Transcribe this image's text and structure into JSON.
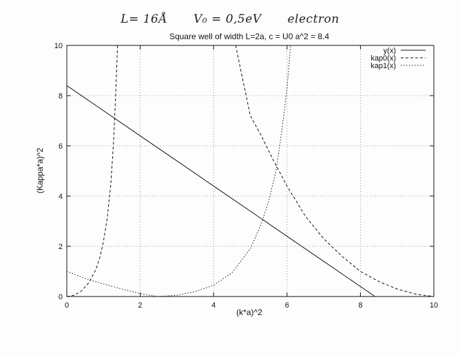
{
  "annotation": {
    "length": "L= 16Å",
    "potential": "V₀ = 0,5eV",
    "particle": "electron"
  },
  "chart_data": {
    "type": "line",
    "title": "Square well of width L=2a, c = U0 a^2 = 8.4",
    "xlabel": "(k*a)^2",
    "ylabel": "(Kappa*a)^2",
    "xlim": [
      0,
      10
    ],
    "ylim": [
      0,
      10
    ],
    "xticks": [
      0,
      2,
      4,
      6,
      8,
      10
    ],
    "yticks": [
      0,
      2,
      4,
      6,
      8,
      10
    ],
    "grid": true,
    "legend_position": "top-right",
    "series": [
      {
        "name": "y(x)",
        "style": "solid",
        "points": [
          [
            0,
            8.4
          ],
          [
            2,
            6.4
          ],
          [
            4,
            4.4
          ],
          [
            6,
            2.4
          ],
          [
            8.4,
            0
          ]
        ]
      },
      {
        "name": "kap0(x)",
        "style": "dashed",
        "branches": [
          [
            [
              0,
              0
            ],
            [
              0.2,
              0.05
            ],
            [
              0.4,
              0.22
            ],
            [
              0.6,
              0.55
            ],
            [
              0.8,
              1.1
            ],
            [
              0.9,
              1.55
            ],
            [
              1.0,
              2.2
            ],
            [
              1.1,
              3.1
            ],
            [
              1.2,
              4.5
            ],
            [
              1.28,
              6.3
            ],
            [
              1.34,
              8.3
            ],
            [
              1.38,
              10
            ]
          ],
          [
            [
              4.6,
              10
            ],
            [
              4.7,
              9.3
            ],
            [
              5.0,
              7.2
            ],
            [
              5.3,
              6.4
            ],
            [
              5.6,
              5.5
            ],
            [
              6.0,
              4.4
            ],
            [
              6.5,
              3.2
            ],
            [
              7.0,
              2.3
            ],
            [
              7.5,
              1.6
            ],
            [
              8.0,
              1.0
            ],
            [
              8.5,
              0.6
            ],
            [
              9.0,
              0.3
            ],
            [
              9.5,
              0.1
            ],
            [
              10,
              0
            ]
          ]
        ]
      },
      {
        "name": "kap1(x)",
        "style": "dotted",
        "branches": [
          [
            [
              0,
              1.0
            ],
            [
              0.5,
              0.72
            ],
            [
              1.0,
              0.5
            ],
            [
              1.5,
              0.3
            ],
            [
              2.0,
              0.12
            ],
            [
              2.47,
              0
            ]
          ],
          [
            [
              2.47,
              0
            ],
            [
              3.0,
              0.05
            ],
            [
              3.5,
              0.2
            ],
            [
              4.0,
              0.45
            ],
            [
              4.5,
              0.95
            ],
            [
              5.0,
              1.9
            ],
            [
              5.3,
              2.9
            ],
            [
              5.5,
              3.8
            ],
            [
              5.7,
              5.0
            ],
            [
              5.85,
              6.5
            ],
            [
              6.0,
              8.3
            ],
            [
              6.1,
              10
            ]
          ]
        ]
      }
    ]
  }
}
